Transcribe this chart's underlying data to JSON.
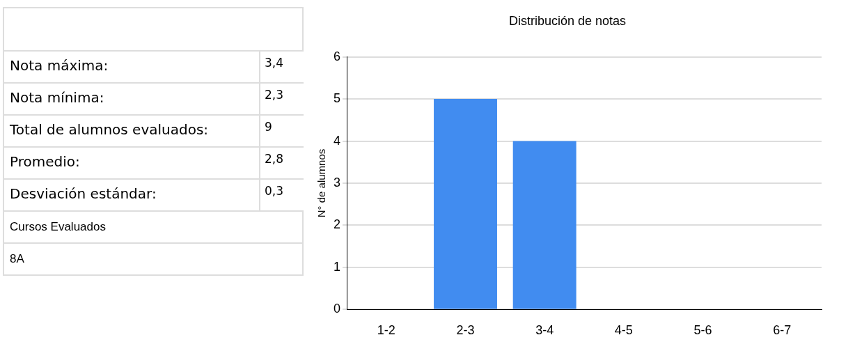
{
  "chart_data": [
    {
      "type": "other",
      "annotations": [
        "Nota máxima:",
        "3,4",
        "Nota mínima:",
        "2,3",
        "Total de alumnos evaluados:",
        "9",
        "Promedio:",
        "2,8",
        "Desviación estándar:",
        "0,3",
        "Cursos Evaluados",
        "8A"
      ]
    },
    {
      "type": "bar",
      "title": "Distribución de notas",
      "ylabel": "N° de alumnos",
      "categories": [
        "1-2",
        "2-3",
        "3-4",
        "4-5",
        "5-6",
        "6-7"
      ],
      "values": [
        0,
        5,
        4,
        0,
        0,
        0
      ],
      "color": "#418cf0",
      "ylim": [
        0,
        6
      ],
      "yticks": [
        0,
        1,
        2,
        3,
        4,
        5,
        6
      ],
      "grid": "y",
      "legend": false
    }
  ]
}
